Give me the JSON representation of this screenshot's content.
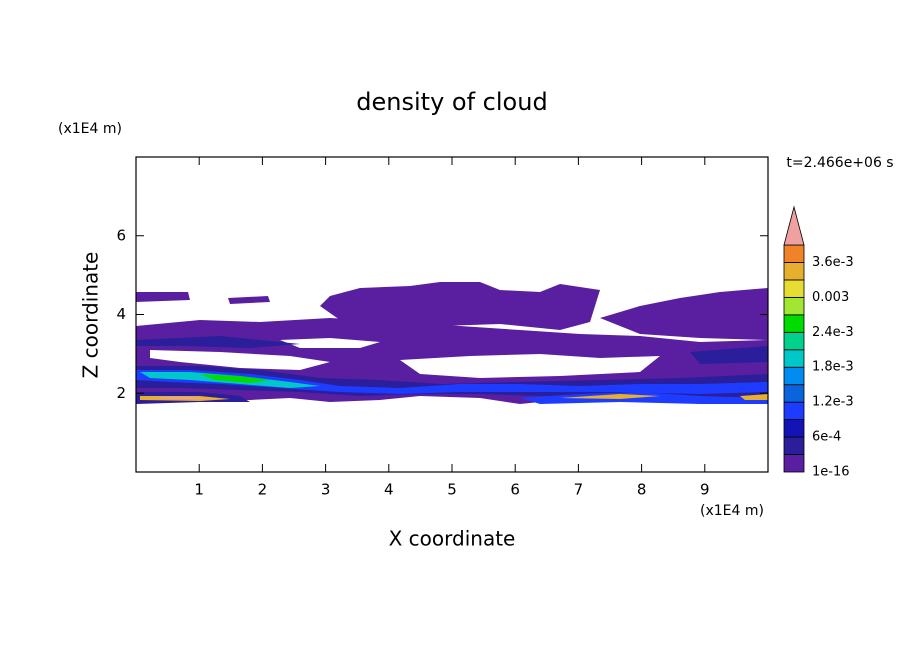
{
  "chart_data": {
    "type": "contour",
    "title": "density of cloud",
    "x_label": "X coordinate",
    "y_label": "Z coordinate",
    "x_unit": "(x1E4 m)",
    "y_unit": "(x1E4 m)",
    "time_label": "t=2.466e+06 s",
    "xlim": [
      0,
      10
    ],
    "xticks": [
      1,
      2,
      3,
      4,
      5,
      6,
      7,
      8,
      9
    ],
    "ylim": [
      0,
      8
    ],
    "yticks": [
      2,
      4,
      6
    ],
    "colorbar": {
      "levels": [
        1e-16,
        0.0003,
        0.0006,
        0.0009,
        0.0012,
        0.0015,
        0.0018,
        0.0021,
        0.0024,
        0.0027,
        0.003,
        0.0033,
        0.0036,
        0.0039
      ],
      "labels": [
        "1e-16",
        null,
        "6e-4",
        null,
        "1.2e-3",
        null,
        "1.8e-3",
        null,
        "2.4e-3",
        null,
        "0.003",
        null,
        "3.6e-3",
        null
      ],
      "colors": [
        "#5a1ea0",
        "#2a1e9a",
        "#1414b4",
        "#1e3cff",
        "#0a64dc",
        "#008cf0",
        "#00c8c8",
        "#00d28c",
        "#00dc00",
        "#a0e632",
        "#e6dc32",
        "#e6af2d",
        "#f08228",
        "#fa3c3c"
      ],
      "over_color": "#f0a0a0"
    }
  }
}
